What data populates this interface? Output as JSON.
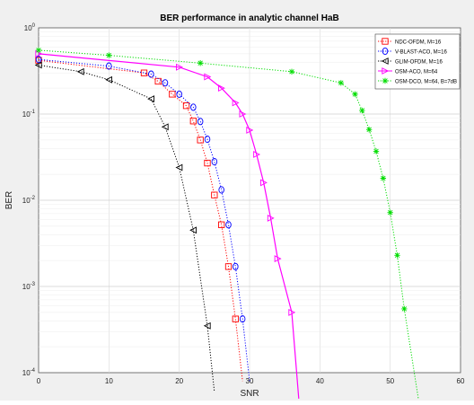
{
  "chart_data": {
    "type": "line",
    "title": "BER performance in analytic channel HaB",
    "xlabel": "SNR",
    "ylabel": "BER",
    "xlim": [
      0,
      60
    ],
    "ylim": [
      0.0001,
      1
    ],
    "yscale": "log",
    "grid": true,
    "legend_position": "top-right",
    "x_ticks": [
      "0",
      "10",
      "20",
      "30",
      "40",
      "50",
      "60"
    ],
    "y_ticks": [
      {
        "base": "10",
        "exp": "0",
        "value": 1
      },
      {
        "base": "10",
        "exp": "-1",
        "value": 0.1
      },
      {
        "base": "10",
        "exp": "-2",
        "value": 0.01
      },
      {
        "base": "10",
        "exp": "-3",
        "value": 0.001
      },
      {
        "base": "10",
        "exp": "-4",
        "value": 0.0001
      }
    ],
    "series": [
      {
        "name": "NDC-OFDM, M=16",
        "color": "#ff0000",
        "marker": "square",
        "line": "dotted",
        "x": [
          0,
          15,
          17,
          19,
          21,
          22,
          23,
          24,
          25,
          26,
          27,
          28,
          29
        ],
        "y": [
          0.42,
          0.3,
          0.24,
          0.17,
          0.125,
          0.083,
          0.05,
          0.027,
          0.0115,
          0.0052,
          0.0017,
          0.00042,
          8e-05
        ]
      },
      {
        "name": "V-BLAST-ACO, M=16",
        "color": "#0000ff",
        "marker": "circle",
        "line": "dotted",
        "x": [
          0,
          10,
          16,
          18,
          20,
          22,
          23,
          24,
          25,
          26,
          27,
          28,
          29,
          30
        ],
        "y": [
          0.43,
          0.36,
          0.29,
          0.23,
          0.17,
          0.12,
          0.082,
          0.051,
          0.028,
          0.0132,
          0.0052,
          0.0017,
          0.00042,
          8e-05
        ]
      },
      {
        "name": "GLIM-OFDM, M=16",
        "color": "#000000",
        "marker": "triangle-left",
        "line": "dotted",
        "x": [
          0,
          6,
          10,
          16,
          18,
          20,
          22,
          24,
          25
        ],
        "y": [
          0.37,
          0.31,
          0.25,
          0.15,
          0.071,
          0.024,
          0.0045,
          0.00035,
          6e-05
        ]
      },
      {
        "name": "OSM-ACO, M=64",
        "color": "#ff00ff",
        "marker": "triangle-right",
        "line": "solid",
        "x": [
          0,
          20,
          24,
          26,
          28,
          29,
          30,
          31,
          32,
          33,
          34,
          36,
          37
        ],
        "y": [
          0.5,
          0.35,
          0.27,
          0.2,
          0.135,
          0.1,
          0.065,
          0.034,
          0.016,
          0.0062,
          0.0021,
          0.0005,
          5e-05
        ]
      },
      {
        "name": "OSM-DCO, M=64, B=7dB",
        "color": "#00dd00",
        "marker": "star",
        "line": "dotted",
        "x": [
          0,
          10,
          23,
          36,
          43,
          45,
          46,
          47,
          48,
          49,
          50,
          51,
          52,
          54
        ],
        "y": [
          0.55,
          0.48,
          0.39,
          0.31,
          0.23,
          0.17,
          0.11,
          0.066,
          0.037,
          0.018,
          0.0072,
          0.0023,
          0.00055,
          5e-05
        ]
      }
    ]
  }
}
